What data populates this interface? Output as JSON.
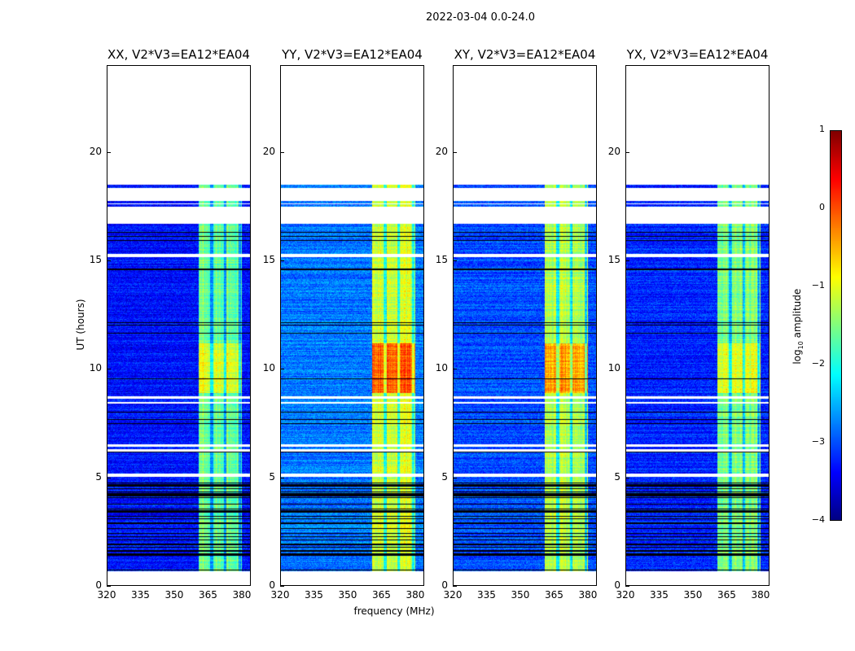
{
  "chart_data": {
    "type": "heatmap",
    "title": "2022-03-04 0.0-24.0",
    "xlabel": "frequency (MHz)",
    "ylabel": "UT (hours)",
    "xlim": [
      320,
      384
    ],
    "ylim": [
      0,
      24
    ],
    "xticks": [
      "320",
      "335",
      "350",
      "365",
      "380"
    ],
    "xtick_values": [
      320,
      335,
      350,
      365,
      380
    ],
    "yticks": [
      "0",
      "5",
      "10",
      "15",
      "20"
    ],
    "ytick_values": [
      0,
      5,
      10,
      15,
      20
    ],
    "data_hours": [
      0.7,
      18.5
    ],
    "flagged_hours": [
      [
        0,
        0.7
      ],
      [
        5.05,
        5.2
      ],
      [
        6.2,
        6.3
      ],
      [
        6.45,
        6.55
      ],
      [
        8.4,
        8.5
      ],
      [
        8.65,
        8.75
      ],
      [
        15.15,
        15.3
      ],
      [
        16.7,
        17.5
      ],
      [
        17.6,
        17.65
      ],
      [
        17.75,
        18.35
      ],
      [
        18.5,
        24
      ]
    ],
    "bright_band_mhz": [
      360.5,
      380
    ],
    "colormap": "jet",
    "colorbar": {
      "label": "log10 amplitude",
      "label_main": "log",
      "label_sub": "10",
      "label_rest": " amplitude",
      "range": [
        -4,
        1
      ],
      "ticks": [
        "1",
        "0",
        "−1",
        "−2",
        "−3",
        "−4"
      ],
      "tick_values": [
        1,
        0,
        -1,
        -2,
        -3,
        -4
      ]
    },
    "panels": [
      {
        "title": "XX, V2*V3=EA12*EA04",
        "background_level": -3.3,
        "band_level": -1.6,
        "band_peak_level": -1.0,
        "peak_hours": [
          8.9,
          11.2
        ]
      },
      {
        "title": "YY, V2*V3=EA12*EA04",
        "background_level": -2.8,
        "band_level": -1.1,
        "band_peak_level": -0.1,
        "peak_hours": [
          8.9,
          11.2
        ]
      },
      {
        "title": "XY, V2*V3=EA12*EA04",
        "background_level": -3.0,
        "band_level": -1.2,
        "band_peak_level": -0.4,
        "peak_hours": [
          8.9,
          11.2
        ]
      },
      {
        "title": "YX, V2*V3=EA12*EA04",
        "background_level": -3.2,
        "band_level": -1.5,
        "band_peak_level": -1.0,
        "peak_hours": [
          8.9,
          11.2
        ]
      }
    ]
  }
}
